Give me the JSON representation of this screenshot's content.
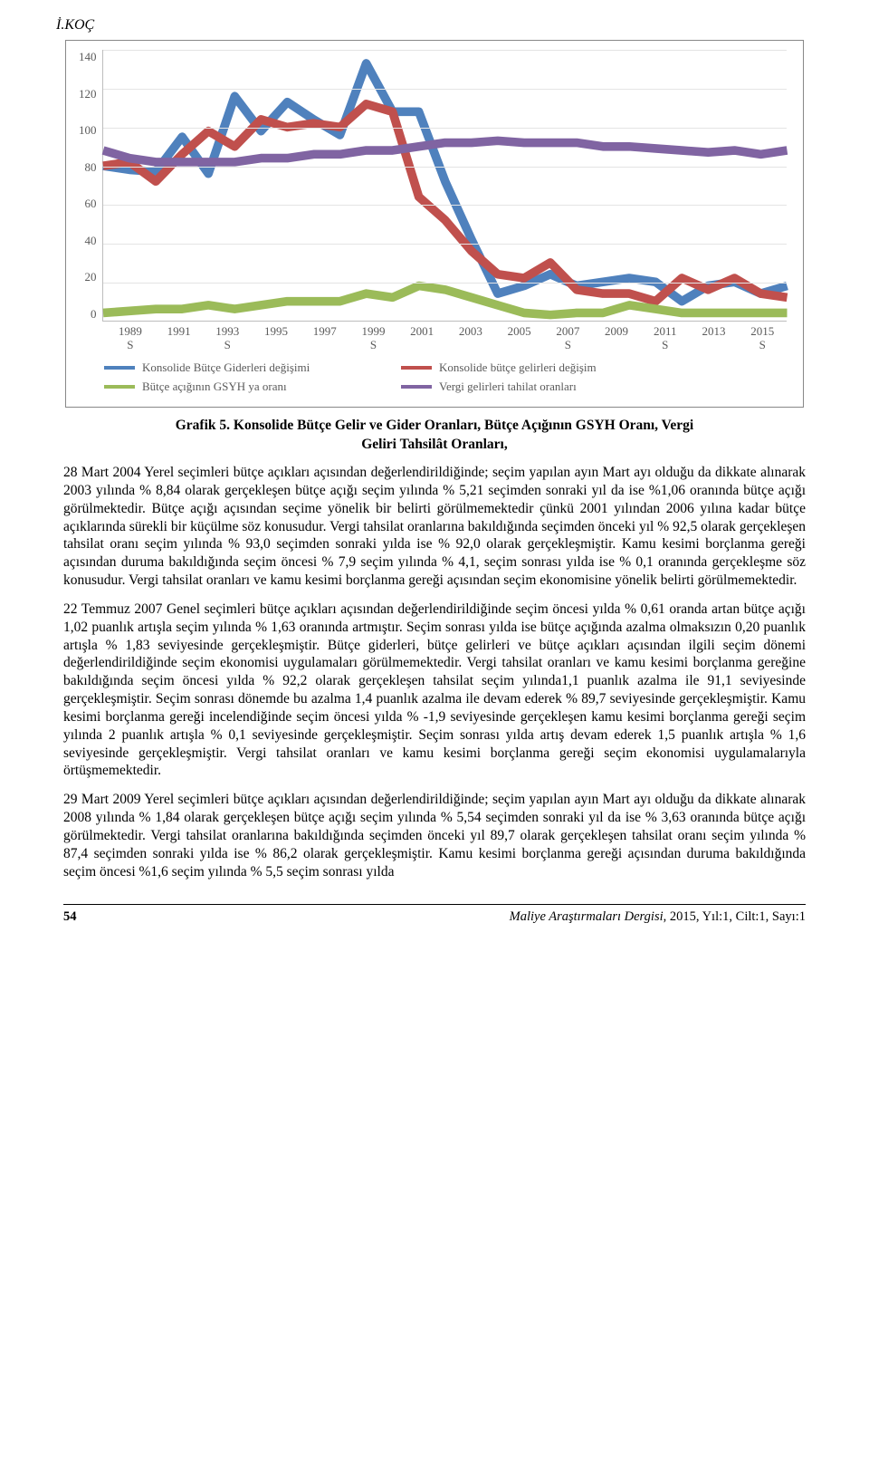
{
  "header": {
    "author": "İ.KOÇ"
  },
  "chart": {
    "type": "line",
    "y": {
      "min": 0,
      "max": 140,
      "step": 20,
      "ticks": [
        140,
        120,
        100,
        80,
        60,
        40,
        20,
        0
      ]
    },
    "x_labels": [
      "1989 S",
      "1991",
      "1993 S",
      "1995",
      "1997",
      "1999 S",
      "2001",
      "2003",
      "2005",
      "2007 S",
      "2009",
      "2011 S",
      "2013",
      "2015 S"
    ],
    "years": [
      1989,
      1990,
      1991,
      1992,
      1993,
      1994,
      1995,
      1996,
      1997,
      1998,
      1999,
      2000,
      2001,
      2002,
      2003,
      2004,
      2005,
      2006,
      2007,
      2008,
      2009,
      2010,
      2011,
      2012,
      2013,
      2014,
      2015
    ],
    "series": [
      {
        "id": "konsolide_gider",
        "label": "Konsolide Bütçe Giderleri değişimi",
        "color": "#4f81bd",
        "width": 3,
        "values": [
          80,
          78,
          77,
          95,
          76,
          116,
          98,
          113,
          104,
          96,
          133,
          108,
          108,
          72,
          42,
          14,
          18,
          24,
          18,
          20,
          22,
          20,
          10,
          18,
          20,
          14,
          18
        ]
      },
      {
        "id": "konsolide_gelir",
        "label": "Konsolide bütçe gelirleri değişim",
        "color": "#c0504d",
        "width": 3,
        "values": [
          80,
          82,
          72,
          86,
          98,
          90,
          104,
          100,
          102,
          100,
          112,
          108,
          64,
          52,
          36,
          24,
          22,
          30,
          16,
          14,
          14,
          10,
          22,
          16,
          22,
          14,
          12
        ]
      },
      {
        "id": "gsyh_acigi",
        "label": "Bütçe açığının GSYH ya oranı",
        "color": "#9bbb59",
        "width": 3,
        "values": [
          4,
          5,
          6,
          6,
          8,
          6,
          8,
          10,
          10,
          10,
          14,
          12,
          18,
          16,
          12,
          8,
          4,
          3,
          4,
          4,
          8,
          6,
          4,
          4,
          4,
          4,
          4
        ]
      },
      {
        "id": "vergi_tahsilat",
        "label": "Vergi gelirleri tahilat oranları",
        "color": "#8064a2",
        "width": 3,
        "values": [
          88,
          84,
          82,
          82,
          82,
          82,
          84,
          84,
          86,
          86,
          88,
          88,
          90,
          92,
          92,
          93,
          92,
          92,
          92,
          90,
          90,
          89,
          88,
          87,
          88,
          86,
          88
        ]
      }
    ]
  },
  "figure": {
    "label": "Grafik 5.",
    "title_l1": "Konsolide Bütçe Gelir ve Gider Oranları, Bütçe Açığının GSYH Oranı, Vergi",
    "title_l2": "Geliri Tahsilât Oranları,"
  },
  "paragraphs": {
    "p1": "28 Mart 2004 Yerel seçimleri bütçe açıkları açısından değerlendirildiğinde; seçim yapılan ayın Mart ayı olduğu da dikkate alınarak 2003 yılında % 8,84 olarak gerçekleşen bütçe açığı seçim yılında % 5,21 seçimden sonraki yıl da ise %1,06 oranında bütçe açığı görülmektedir. Bütçe açığı açısından seçime yönelik bir belirti görülmemektedir çünkü 2001 yılından 2006 yılına kadar bütçe açıklarında sürekli bir küçülme söz konusudur. Vergi tahsilat oranlarına bakıldığında seçimden önceki yıl % 92,5 olarak gerçekleşen tahsilat oranı seçim yılında % 93,0 seçimden sonraki yılda ise % 92,0 olarak gerçekleşmiştir. Kamu kesimi borçlanma gereği açısından duruma bakıldığında seçim öncesi % 7,9 seçim yılında % 4,1, seçim sonrası yılda ise % 0,1 oranında gerçekleşme söz konusudur. Vergi tahsilat oranları ve kamu kesimi borçlanma gereği açısından seçim ekonomisine yönelik belirti görülmemektedir.",
    "p2": "22 Temmuz 2007 Genel seçimleri bütçe açıkları açısından değerlendirildiğinde seçim öncesi yılda % 0,61 oranda artan bütçe açığı 1,02 puanlık artışla seçim yılında % 1,63 oranında artmıştır. Seçim sonrası yılda ise bütçe açığında azalma olmaksızın 0,20 puanlık artışla % 1,83 seviyesinde gerçekleşmiştir. Bütçe giderleri, bütçe gelirleri ve bütçe açıkları açısından ilgili seçim dönemi değerlendirildiğinde seçim ekonomisi uygulamaları görülmemektedir. Vergi tahsilat oranları ve kamu kesimi borçlanma gereğine bakıldığında seçim öncesi yılda % 92,2 olarak gerçekleşen tahsilat seçim yılında1,1 puanlık azalma ile 91,1 seviyesinde gerçekleşmiştir. Seçim sonrası dönemde bu azalma 1,4 puanlık azalma ile devam ederek % 89,7 seviyesinde gerçekleşmiştir. Kamu kesimi borçlanma gereği incelendiğinde seçim öncesi yılda % -1,9 seviyesinde gerçekleşen kamu kesimi borçlanma gereği seçim yılında 2 puanlık artışla % 0,1 seviyesinde gerçekleşmiştir. Seçim sonrası yılda artış devam ederek 1,5 puanlık artışla % 1,6 seviyesinde gerçekleşmiştir. Vergi tahsilat oranları ve kamu kesimi borçlanma gereği seçim ekonomisi uygulamalarıyla örtüşmemektedir.",
    "p3": "29 Mart 2009 Yerel seçimleri bütçe açıkları açısından değerlendirildiğinde; seçim yapılan ayın Mart ayı olduğu da dikkate alınarak 2008 yılında % 1,84 olarak gerçekleşen bütçe açığı seçim yılında % 5,54 seçimden sonraki yıl da ise % 3,63 oranında bütçe açığı görülmektedir. Vergi tahsilat oranlarına bakıldığında seçimden önceki yıl 89,7 olarak gerçekleşen tahsilat oranı seçim yılında % 87,4 seçimden sonraki yılda ise % 86,2 olarak gerçekleşmiştir. Kamu kesimi borçlanma gereği açısından duruma bakıldığında seçim öncesi %1,6 seçim yılında % 5,5 seçim sonrası yılda"
  },
  "footer": {
    "page": "54",
    "journal": "Maliye Araştırmaları Dergisi",
    "info": ", 2015, Yıl:1, Cilt:1, Sayı:1"
  }
}
